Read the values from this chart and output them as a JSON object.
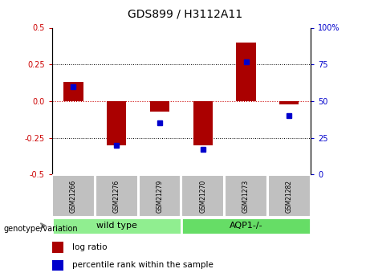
{
  "title": "GDS899 / H3112A11",
  "samples": [
    "GSM21266",
    "GSM21276",
    "GSM21279",
    "GSM21270",
    "GSM21273",
    "GSM21282"
  ],
  "log_ratios": [
    0.13,
    -0.3,
    -0.07,
    -0.3,
    0.4,
    -0.02
  ],
  "percentile_ranks": [
    60,
    20,
    35,
    17,
    77,
    40
  ],
  "wild_type_color": "#90EE90",
  "aqp1_color": "#66CC66",
  "bar_color": "#AA0000",
  "dot_color": "#0000CC",
  "sample_box_color": "#C0C0C0",
  "ylim_left": [
    -0.5,
    0.5
  ],
  "ylim_right": [
    0,
    100
  ],
  "yticks_left": [
    -0.5,
    -0.25,
    0.0,
    0.25,
    0.5
  ],
  "yticks_right": [
    0,
    25,
    50,
    75,
    100
  ],
  "hline_color": "#CC0000",
  "dotted_color": "black",
  "legend_log_ratio": "log ratio",
  "legend_percentile": "percentile rank within the sample",
  "genotype_label": "genotype/variation",
  "group_labels": [
    "wild type",
    "AQP1-/-"
  ],
  "group_colors": [
    "#90EE90",
    "#66DD66"
  ]
}
